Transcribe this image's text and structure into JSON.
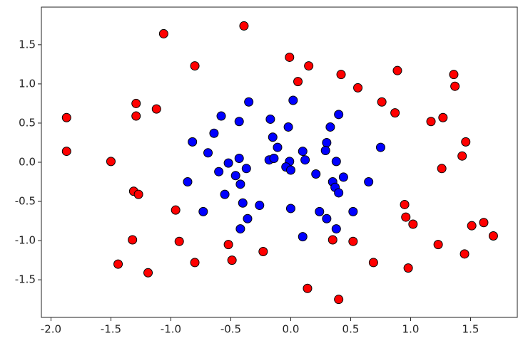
{
  "chart_data": {
    "type": "scatter",
    "xlim": [
      -2.08,
      1.89
    ],
    "ylim": [
      -1.98,
      1.98
    ],
    "xticks": [
      {
        "value": -2,
        "label": "-2.0"
      },
      -1.5,
      {
        "value": -1,
        "label": "-1.0"
      },
      -0.5,
      {
        "value": 0,
        "label": "0.0"
      },
      0.5,
      {
        "value": 1,
        "label": "1.0"
      },
      1.5
    ],
    "yticks": [
      {
        "value": -1.5,
        "label": "-1.5"
      },
      {
        "value": -1,
        "label": "-1.0"
      },
      {
        "value": -0.5,
        "label": "-0.5"
      },
      {
        "value": 0,
        "label": "0.0"
      },
      0.5,
      {
        "value": 1,
        "label": "1.0"
      },
      1.5
    ],
    "edgecolor": "#000000",
    "series": [
      {
        "color": "#ff0000",
        "x": [
          -1.06,
          -0.39,
          -0.8,
          -0.01,
          0.15,
          0.06,
          0.42,
          0.56,
          0.89,
          1.36,
          1.37,
          0.76,
          0.87,
          1.27,
          1.17,
          1.46,
          1.43,
          1.26,
          -1.87,
          -1.87,
          -1.5,
          -1.29,
          -1.29,
          -1.12,
          -1.31,
          -1.27,
          -0.96,
          -1.32,
          -0.93,
          -1.44,
          -1.19,
          -0.8,
          -0.52,
          -0.49,
          -0.23,
          0.14,
          0.4,
          0.35,
          0.52,
          0.69,
          0.98,
          0.95,
          0.96,
          1.02,
          1.23,
          1.51,
          1.61,
          1.69,
          1.45
        ],
        "y": [
          1.64,
          1.74,
          1.23,
          1.34,
          1.23,
          1.03,
          1.12,
          0.95,
          1.17,
          1.12,
          0.97,
          0.77,
          0.63,
          0.57,
          0.52,
          0.26,
          0.08,
          -0.08,
          0.57,
          0.14,
          0.01,
          0.75,
          0.59,
          0.68,
          -0.37,
          -0.41,
          -0.61,
          -0.99,
          -1.01,
          -1.3,
          -1.41,
          -1.28,
          -1.05,
          -1.25,
          -1.14,
          -1.61,
          -1.75,
          -0.99,
          -1.01,
          -1.28,
          -1.35,
          -0.54,
          -0.7,
          -0.79,
          -1.05,
          -0.81,
          -0.77,
          -0.94,
          -1.17
        ]
      },
      {
        "color": "#0000ff",
        "x": [
          -0.35,
          0.02,
          -0.58,
          -0.43,
          -0.17,
          0.4,
          -0.64,
          -0.02,
          0.33,
          -0.15,
          -0.11,
          -0.82,
          -0.69,
          0.3,
          0.29,
          0.1,
          0.75,
          -0.43,
          -0.52,
          -0.18,
          -0.14,
          -0.01,
          0.12,
          0.38,
          -0.6,
          -0.37,
          -0.04,
          0.0,
          -0.46,
          -0.42,
          -0.86,
          0.21,
          0.44,
          0.35,
          0.37,
          0.4,
          0.65,
          -0.55,
          -0.4,
          -0.26,
          -0.73,
          0.0,
          0.24,
          -0.36,
          0.3,
          0.52,
          -0.42,
          0.38,
          0.1
        ],
        "y": [
          0.77,
          0.79,
          0.59,
          0.52,
          0.55,
          0.61,
          0.37,
          0.45,
          0.45,
          0.32,
          0.19,
          0.26,
          0.12,
          0.25,
          0.15,
          0.14,
          0.19,
          0.05,
          -0.01,
          0.03,
          0.05,
          0.01,
          0.03,
          0.01,
          -0.12,
          -0.08,
          -0.06,
          -0.1,
          -0.17,
          -0.28,
          -0.25,
          -0.15,
          -0.19,
          -0.25,
          -0.32,
          -0.39,
          -0.25,
          -0.41,
          -0.52,
          -0.55,
          -0.63,
          -0.59,
          -0.63,
          -0.72,
          -0.72,
          -0.63,
          -0.85,
          -0.85,
          -0.95
        ]
      }
    ]
  }
}
